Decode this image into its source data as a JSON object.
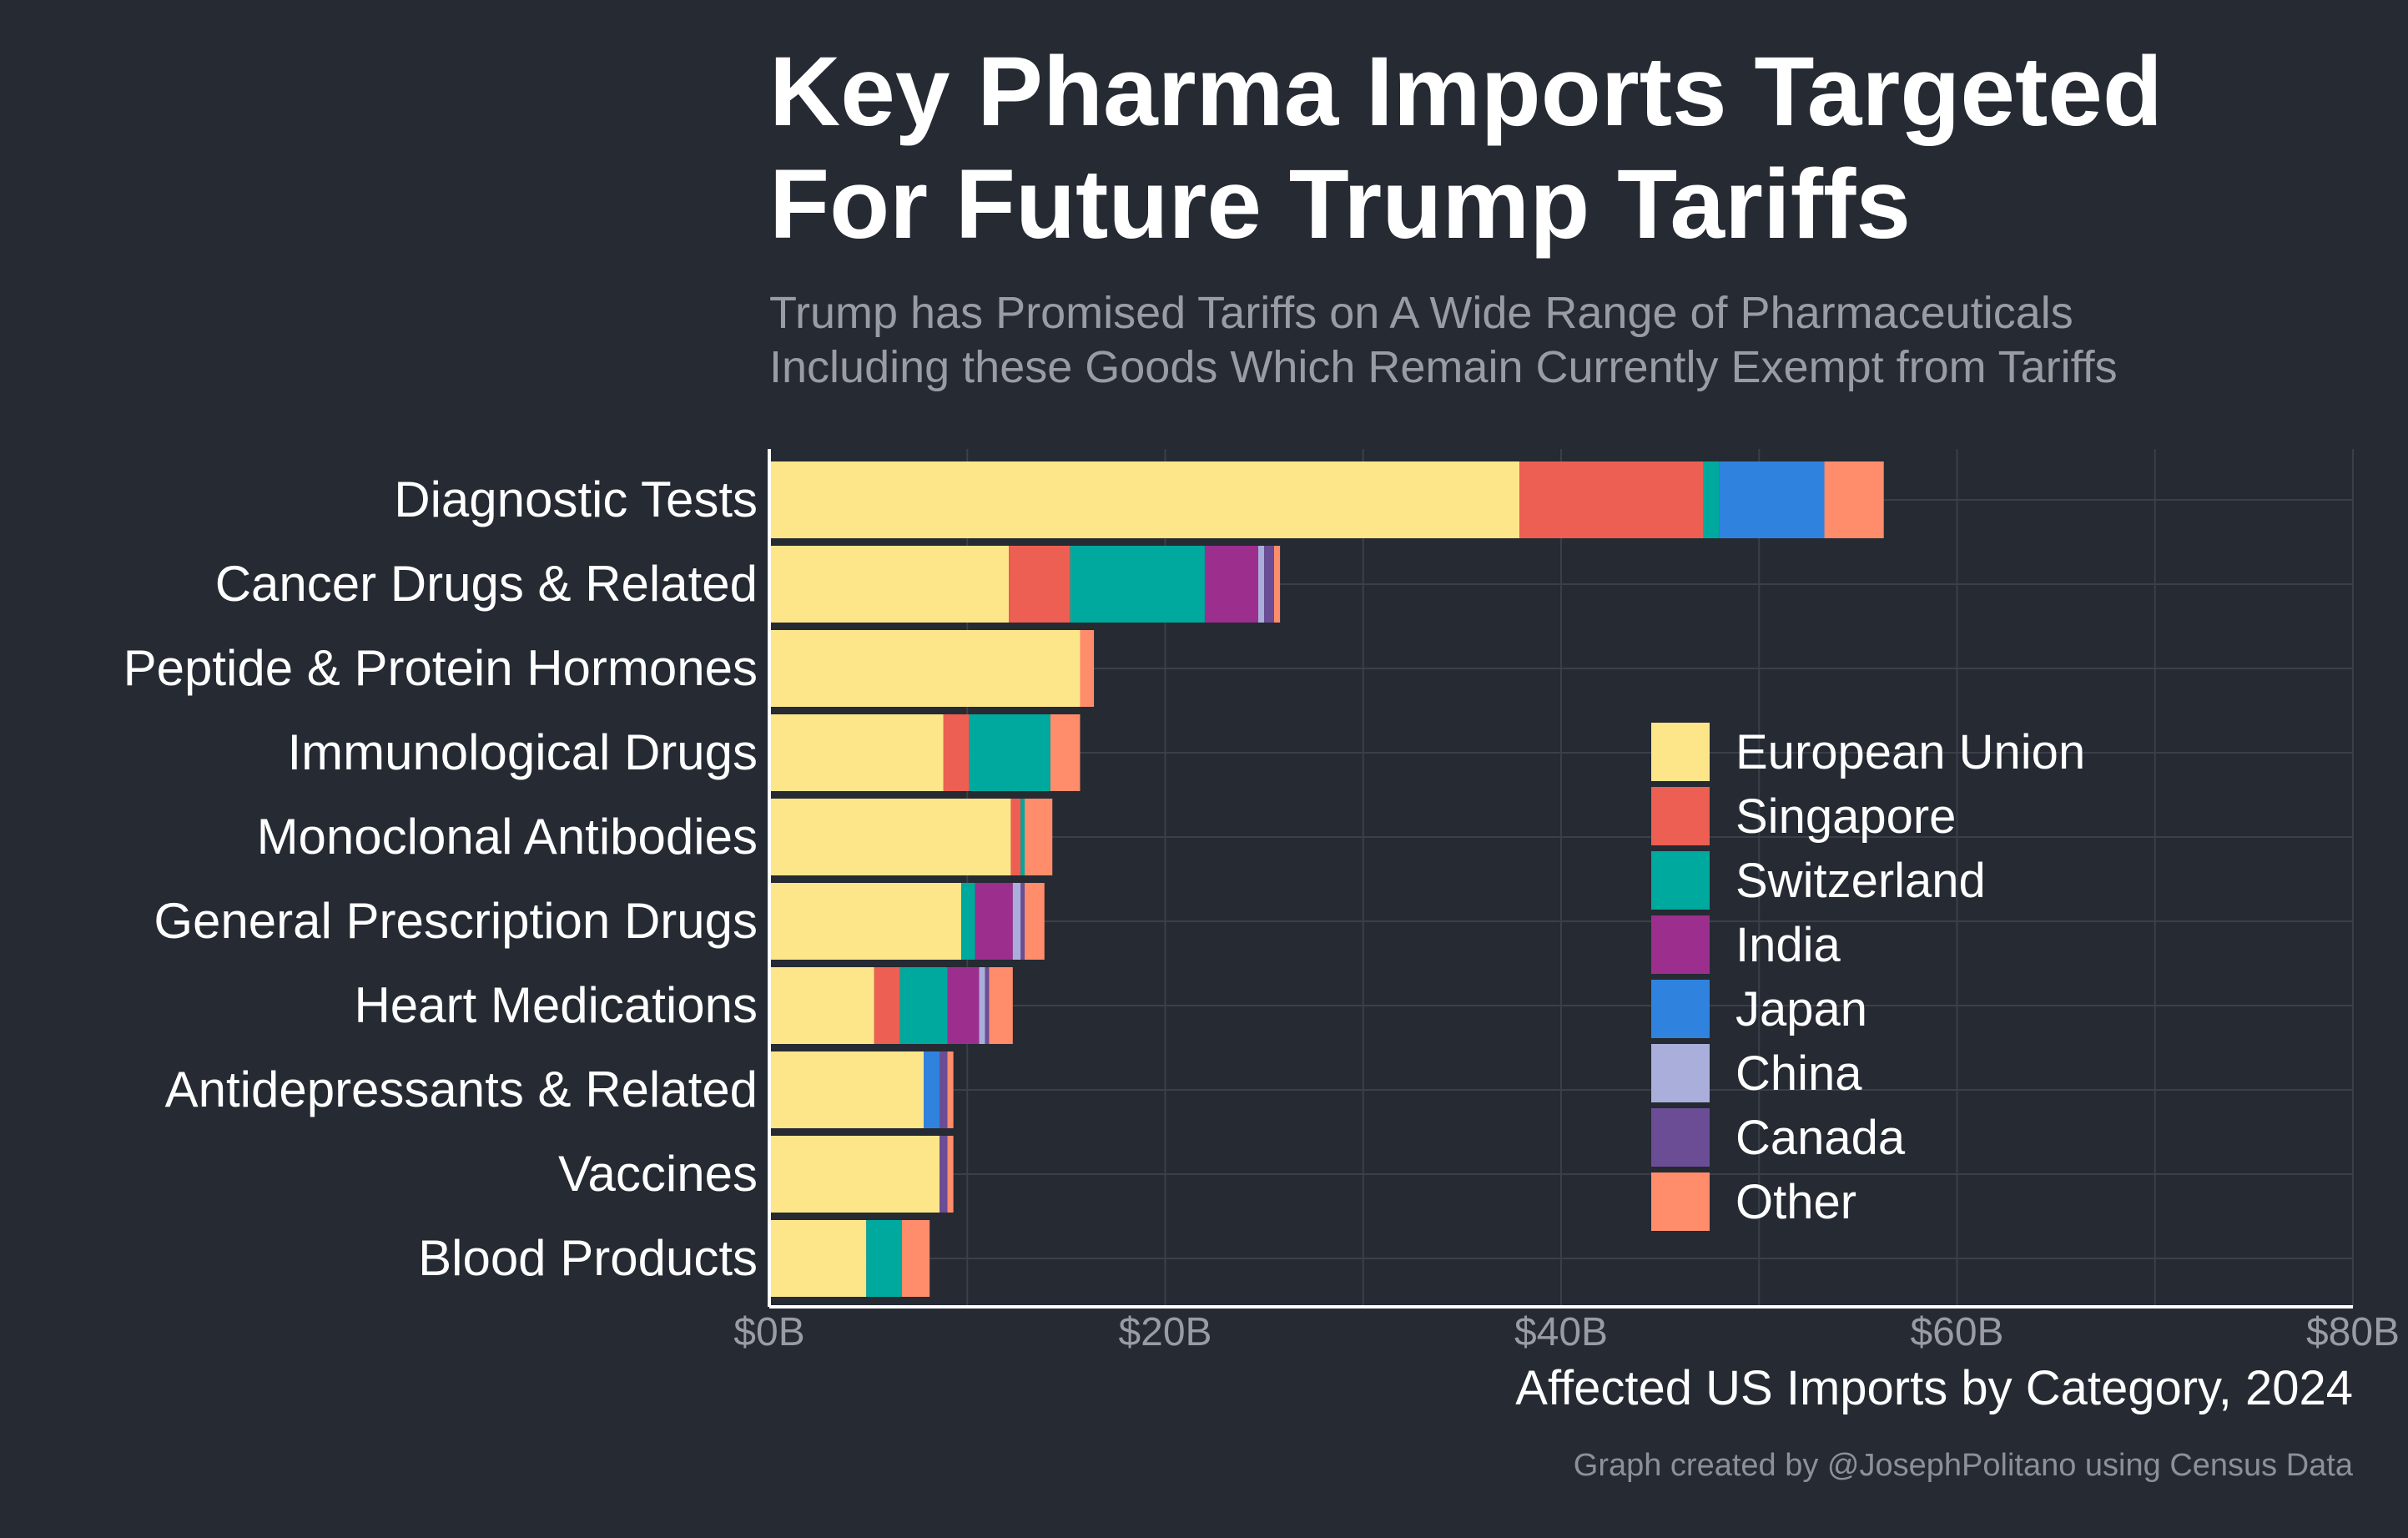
{
  "chart_data": {
    "type": "bar",
    "orientation": "horizontal",
    "stacked": true,
    "title_lines": [
      "Key Pharma Imports Targeted",
      "For Future Trump Tariffs"
    ],
    "subtitle_lines": [
      "Trump has Promised Tariffs on A Wide Range of Pharmaceuticals",
      "Including these Goods Which Remain Currently Exempt from Tariffs"
    ],
    "xlabel": "Affected US Imports by Category, 2024",
    "caption": "Graph created by @JosephPolitano using Census Data",
    "xlim": [
      0,
      80
    ],
    "x_ticks": [
      0,
      20,
      40,
      60,
      80
    ],
    "x_tick_labels": [
      "$0B",
      "$20B",
      "$40B",
      "$60B",
      "$80B"
    ],
    "grid": true,
    "legend_position": "right-middle",
    "categories": [
      "Diagnostic Tests",
      "Cancer Drugs & Related",
      "Peptide & Protein Hormones",
      "Immunological Drugs",
      "Monoclonal Antibodies",
      "General Prescription Drugs",
      "Heart Medications",
      "Antidepressants & Related",
      "Vaccines",
      "Blood Products"
    ],
    "series": [
      {
        "name": "European Union",
        "color": "#fde68a",
        "values": [
          37.9,
          12.1,
          15.7,
          8.8,
          12.2,
          9.7,
          5.3,
          7.8,
          8.6,
          4.9
        ]
      },
      {
        "name": "Singapore",
        "color": "#ec5f52",
        "values": [
          9.3,
          3.1,
          0.0,
          1.3,
          0.5,
          0.0,
          1.3,
          0.0,
          0.0,
          0.0
        ]
      },
      {
        "name": "Switzerland",
        "color": "#00a99d",
        "values": [
          0.8,
          6.8,
          0.0,
          4.1,
          0.2,
          0.7,
          2.4,
          0.0,
          0.0,
          1.8
        ]
      },
      {
        "name": "India",
        "color": "#9c2f8d",
        "values": [
          0.0,
          2.7,
          0.0,
          0.0,
          0.0,
          1.9,
          1.6,
          0.0,
          0.0,
          0.0
        ]
      },
      {
        "name": "Japan",
        "color": "#2f83df",
        "values": [
          5.3,
          0.0,
          0.0,
          0.0,
          0.0,
          0.0,
          0.0,
          0.8,
          0.0,
          0.0
        ]
      },
      {
        "name": "China",
        "color": "#aaaedb",
        "values": [
          0.0,
          0.3,
          0.0,
          0.0,
          0.0,
          0.4,
          0.3,
          0.0,
          0.0,
          0.0
        ]
      },
      {
        "name": "Canada",
        "color": "#6b4d96",
        "values": [
          0.0,
          0.5,
          0.0,
          0.0,
          0.0,
          0.2,
          0.2,
          0.4,
          0.4,
          0.0
        ]
      },
      {
        "name": "Other",
        "color": "#ff8c6b",
        "values": [
          3.0,
          0.3,
          0.7,
          1.5,
          1.4,
          1.0,
          1.2,
          0.3,
          0.3,
          1.4
        ]
      }
    ]
  },
  "colors": {
    "background": "#252a33",
    "grid": "#3a3f49",
    "axis": "#ffffff",
    "text": "#ffffff",
    "muted_text": "#9a9ca3"
  }
}
